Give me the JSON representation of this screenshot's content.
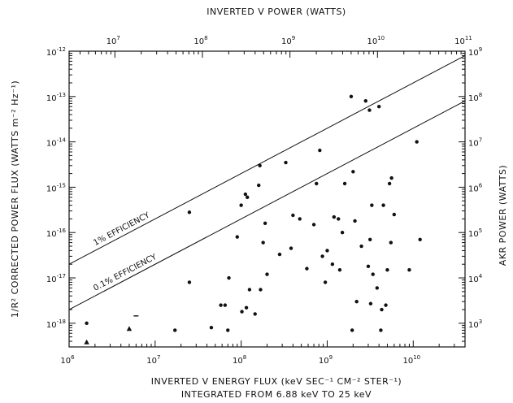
{
  "chart_data": {
    "type": "scatter",
    "top_axis_title": "INVERTED V POWER (WATTS)",
    "xlabel": "INVERTED V ENERGY FLUX (keV SEC⁻¹ CM⁻² STER⁻¹)",
    "xlabel_sub": "INTEGRATED FROM 6.88 keV TO 25 keV",
    "ylabel": "1/R² CORRECTED POWER FLUX (WATTS m⁻² Hz⁻¹)",
    "right_axis_title": "AKR POWER (WATTS)",
    "x_scale": "log",
    "y_scale": "log",
    "xlim": [
      1000000,
      40000000000
    ],
    "ylim": [
      3e-19,
      1e-12
    ],
    "top_axis": {
      "scale": "log",
      "lim": [
        3000000,
        100000000000
      ],
      "ticks": [
        "10⁷",
        "10⁸",
        "10⁹",
        "10¹⁰",
        "10¹¹"
      ]
    },
    "right_axis": {
      "scale": "log",
      "lim": [
        300,
        1000000000
      ],
      "ticks": [
        "10³",
        "10⁴",
        "10⁵",
        "10⁶",
        "10⁷",
        "10⁸",
        "10⁹"
      ]
    },
    "x_ticks": [
      "10⁶",
      "10⁷",
      "10⁸",
      "10⁹",
      "10¹⁰"
    ],
    "y_ticks": [
      "10⁻¹⁸",
      "10⁻¹⁷",
      "10⁻¹⁶",
      "10⁻¹⁵",
      "10⁻¹⁴",
      "10⁻¹³",
      "10⁻¹²"
    ],
    "grid": false,
    "lines": [
      {
        "name": "1% EFFICIENCY",
        "x": [
          1000000,
          40000000000
        ],
        "y": [
          2e-17,
          8e-13
        ]
      },
      {
        "name": "0.1% EFFICIENCY",
        "x": [
          1000000,
          40000000000
        ],
        "y": [
          2e-18,
          8e-14
        ]
      }
    ],
    "series": [
      {
        "marker": "dot",
        "points": [
          [
            1600000,
            1e-18
          ],
          [
            17000000,
            7e-19
          ],
          [
            25000000,
            2.8e-16
          ],
          [
            25000000,
            8e-18
          ],
          [
            45000000,
            8e-19
          ],
          [
            58000000,
            2.5e-18
          ],
          [
            65000000,
            2.5e-18
          ],
          [
            70000000,
            7e-19
          ],
          [
            72000000,
            1e-17
          ],
          [
            90000000,
            8e-17
          ],
          [
            100000000,
            4e-16
          ],
          [
            102000000,
            1.8e-18
          ],
          [
            112000000,
            7e-16
          ],
          [
            115000000,
            2.2e-18
          ],
          [
            118000000,
            6e-16
          ],
          [
            125000000,
            5.5e-18
          ],
          [
            145000000,
            1.6e-18
          ],
          [
            160000000,
            1.1e-15
          ],
          [
            165000000,
            3e-15
          ],
          [
            168000000,
            5.5e-18
          ],
          [
            180000000,
            6e-17
          ],
          [
            190000000,
            1.6e-16
          ],
          [
            200000000,
            1.2e-17
          ],
          [
            280000000,
            3.3e-17
          ],
          [
            330000000,
            3.5e-15
          ],
          [
            380000000,
            4.5e-17
          ],
          [
            400000000,
            2.4e-16
          ],
          [
            480000000,
            2e-16
          ],
          [
            580000000,
            1.6e-17
          ],
          [
            700000000,
            1.5e-16
          ],
          [
            750000000,
            1.2e-15
          ],
          [
            820000000,
            6.5e-15
          ],
          [
            880000000,
            3e-17
          ],
          [
            950000000,
            8e-18
          ],
          [
            1000000000,
            4e-17
          ],
          [
            1150000000,
            2e-17
          ],
          [
            1200000000,
            2.2e-16
          ],
          [
            1350000000,
            2e-16
          ],
          [
            1400000000,
            1.5e-17
          ],
          [
            1500000000,
            1e-16
          ],
          [
            1600000000,
            1.2e-15
          ],
          [
            1900000000,
            1e-13
          ],
          [
            1950000000,
            7e-19
          ],
          [
            2000000000,
            2.2e-15
          ],
          [
            2100000000,
            1.8e-16
          ],
          [
            2200000000,
            3e-18
          ],
          [
            2500000000,
            5e-17
          ],
          [
            2800000000,
            8e-14
          ],
          [
            3000000000,
            1.8e-17
          ],
          [
            3100000000,
            5e-14
          ],
          [
            3150000000,
            7e-17
          ],
          [
            3200000000,
            2.7e-18
          ],
          [
            3300000000,
            4e-16
          ],
          [
            3400000000,
            1.2e-17
          ],
          [
            3800000000,
            6e-18
          ],
          [
            4000000000,
            6e-14
          ],
          [
            4200000000,
            7e-19
          ],
          [
            4300000000,
            2e-18
          ],
          [
            4500000000,
            4e-16
          ],
          [
            4800000000,
            2.5e-18
          ],
          [
            5000000000,
            1.5e-17
          ],
          [
            5300000000,
            1.2e-15
          ],
          [
            5500000000,
            6e-17
          ],
          [
            5600000000,
            1.6e-15
          ],
          [
            6000000000,
            2.5e-16
          ],
          [
            9000000000,
            1.5e-17
          ],
          [
            11000000000,
            1e-14
          ],
          [
            12000000000,
            7e-17
          ]
        ]
      },
      {
        "marker": "triangle",
        "points": [
          [
            1600000,
            3.8e-19
          ],
          [
            5000000,
            7.5e-19
          ]
        ]
      },
      {
        "marker": "dash",
        "points": [
          [
            6000000,
            1.45e-18
          ]
        ]
      }
    ]
  }
}
